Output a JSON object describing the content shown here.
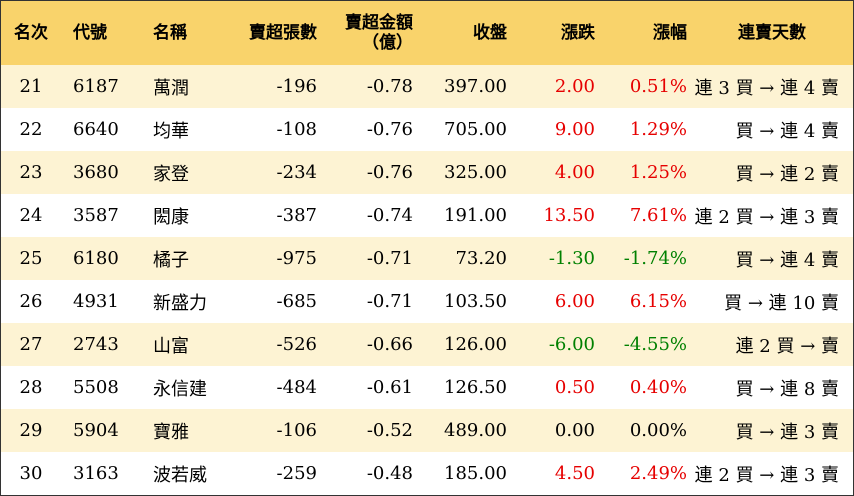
{
  "colors": {
    "header_bg": "#f9d36b",
    "odd_row_bg": "#fdf3d3",
    "up": "#e60000",
    "down": "#008000"
  },
  "headers": {
    "rank": "名次",
    "code": "代號",
    "name": "名稱",
    "net_sell_lots": "賣超張數",
    "net_sell_amount": "賣超金額",
    "net_sell_amount_unit": "（億）",
    "close": "收盤",
    "change": "漲跌",
    "change_pct": "漲幅",
    "streak": "連賣天數"
  },
  "rows": [
    {
      "rank": "21",
      "code": "6187",
      "name": "萬潤",
      "lots": "-196",
      "amount": "-0.78",
      "close": "397.00",
      "change": "2.00",
      "pct": "0.51%",
      "dir": "up",
      "streak": "連 3 買 → 連 4 賣"
    },
    {
      "rank": "22",
      "code": "6640",
      "name": "均華",
      "lots": "-108",
      "amount": "-0.76",
      "close": "705.00",
      "change": "9.00",
      "pct": "1.29%",
      "dir": "up",
      "streak": "買 → 連 4 賣"
    },
    {
      "rank": "23",
      "code": "3680",
      "name": "家登",
      "lots": "-234",
      "amount": "-0.76",
      "close": "325.00",
      "change": "4.00",
      "pct": "1.25%",
      "dir": "up",
      "streak": "買 → 連 2 賣"
    },
    {
      "rank": "24",
      "code": "3587",
      "name": "閎康",
      "lots": "-387",
      "amount": "-0.74",
      "close": "191.00",
      "change": "13.50",
      "pct": "7.61%",
      "dir": "up",
      "streak": "連 2 買 → 連 3 賣"
    },
    {
      "rank": "25",
      "code": "6180",
      "name": "橘子",
      "lots": "-975",
      "amount": "-0.71",
      "close": "73.20",
      "change": "-1.30",
      "pct": "-1.74%",
      "dir": "down",
      "streak": "買 → 連 4 賣"
    },
    {
      "rank": "26",
      "code": "4931",
      "name": "新盛力",
      "lots": "-685",
      "amount": "-0.71",
      "close": "103.50",
      "change": "6.00",
      "pct": "6.15%",
      "dir": "up",
      "streak": "買 → 連 10 賣"
    },
    {
      "rank": "27",
      "code": "2743",
      "name": "山富",
      "lots": "-526",
      "amount": "-0.66",
      "close": "126.00",
      "change": "-6.00",
      "pct": "-4.55%",
      "dir": "down",
      "streak": "連 2 買 → 賣"
    },
    {
      "rank": "28",
      "code": "5508",
      "name": "永信建",
      "lots": "-484",
      "amount": "-0.61",
      "close": "126.50",
      "change": "0.50",
      "pct": "0.40%",
      "dir": "up",
      "streak": "買 → 連 8 賣"
    },
    {
      "rank": "29",
      "code": "5904",
      "name": "寶雅",
      "lots": "-106",
      "amount": "-0.52",
      "close": "489.00",
      "change": "0.00",
      "pct": "0.00%",
      "dir": "flat",
      "streak": "買 → 連 3 賣"
    },
    {
      "rank": "30",
      "code": "3163",
      "name": "波若威",
      "lots": "-259",
      "amount": "-0.48",
      "close": "185.00",
      "change": "4.50",
      "pct": "2.49%",
      "dir": "up",
      "streak": "連 2 買 → 連 3 賣"
    }
  ]
}
